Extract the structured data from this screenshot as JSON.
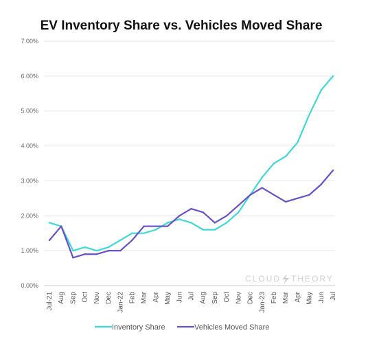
{
  "chart_data": {
    "type": "line",
    "title": "EV Inventory Share vs. Vehicles Moved Share",
    "categories": [
      "Jul-21",
      "Aug",
      "Sep",
      "Oct",
      "Nov",
      "Dec",
      "Jan-22",
      "Feb",
      "Mar",
      "Apr",
      "May",
      "Jun",
      "Jul",
      "Aug",
      "Sep",
      "Oct",
      "Nov",
      "Dec",
      "Jan-23",
      "Feb",
      "Mar",
      "Apr",
      "May",
      "Jun",
      "Jul"
    ],
    "ylim": [
      0,
      7
    ],
    "yticks": [
      "0.00%",
      "1.00%",
      "2.00%",
      "3.00%",
      "4.00%",
      "5.00%",
      "6.00%",
      "7.00%"
    ],
    "grid": true,
    "legend_position": "bottom",
    "series": [
      {
        "name": "Inventory Share",
        "color": "#3dd9d6",
        "values": [
          1.8,
          1.7,
          1.0,
          1.1,
          1.0,
          1.1,
          1.3,
          1.5,
          1.5,
          1.6,
          1.8,
          1.9,
          1.8,
          1.6,
          1.6,
          1.8,
          2.1,
          2.6,
          3.1,
          3.5,
          3.7,
          4.1,
          4.9,
          5.6,
          6.0
        ]
      },
      {
        "name": "Vehicles Moved Share",
        "color": "#6a4fc9",
        "values": [
          1.3,
          1.7,
          0.8,
          0.9,
          0.9,
          1.0,
          1.0,
          1.3,
          1.7,
          1.7,
          1.7,
          2.0,
          2.2,
          2.1,
          1.8,
          2.0,
          2.3,
          2.6,
          2.8,
          2.6,
          2.4,
          2.5,
          2.6,
          2.9,
          3.3
        ]
      }
    ]
  },
  "watermark": {
    "text_left": "CLOUD",
    "text_right": "THEORY",
    "icon": "lightning-bolt-icon"
  }
}
